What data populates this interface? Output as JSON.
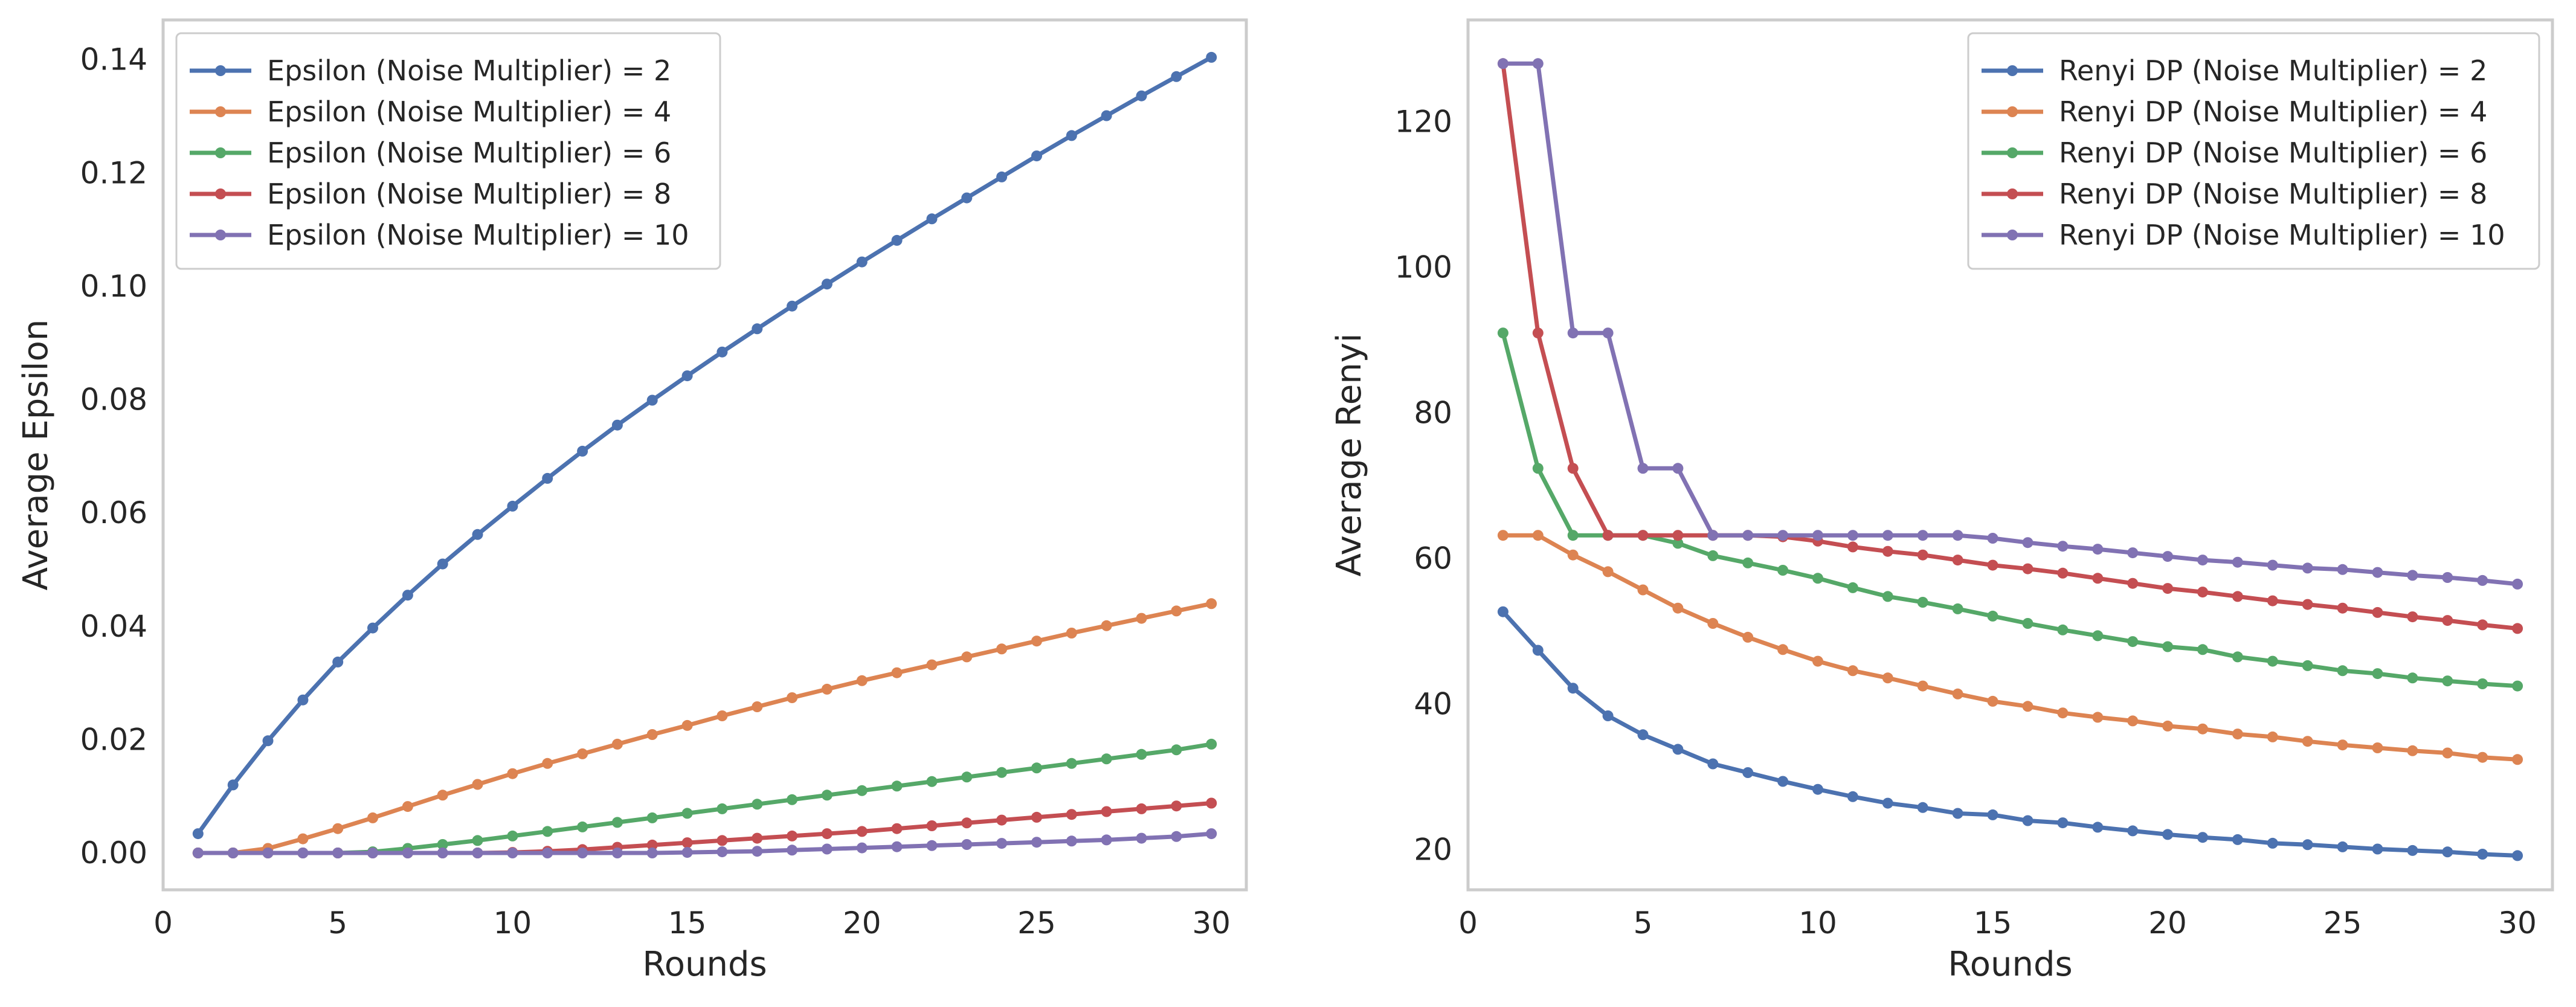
{
  "chart_data": [
    {
      "type": "line",
      "title": "",
      "xlabel": "Rounds",
      "ylabel": "Average Epsilon",
      "xlim": [
        0,
        31
      ],
      "ylim": [
        -0.0065,
        0.147
      ],
      "xticks": [
        0,
        5,
        10,
        15,
        20,
        25,
        30
      ],
      "xtick_labels": [
        "0",
        "5",
        "10",
        "15",
        "20",
        "25",
        "30"
      ],
      "yticks": [
        0.0,
        0.02,
        0.04,
        0.06,
        0.08,
        0.1,
        0.12,
        0.14
      ],
      "ytick_labels": [
        "0.00",
        "0.02",
        "0.04",
        "0.06",
        "0.08",
        "0.10",
        "0.12",
        "0.14"
      ],
      "grid": false,
      "legend_position": "top-left",
      "x": [
        1,
        2,
        3,
        4,
        5,
        6,
        7,
        8,
        9,
        10,
        11,
        12,
        13,
        14,
        15,
        16,
        17,
        18,
        19,
        20,
        21,
        22,
        23,
        24,
        25,
        26,
        27,
        28,
        29,
        30
      ],
      "series": [
        {
          "name": "Epsilon (Noise Multiplier) = 2",
          "color": "#4C72B0",
          "values": [
            0.0034,
            0.012,
            0.0198,
            0.027,
            0.0337,
            0.0397,
            0.0455,
            0.051,
            0.0562,
            0.0612,
            0.0661,
            0.0709,
            0.0755,
            0.0799,
            0.0842,
            0.0884,
            0.0925,
            0.0965,
            0.1004,
            0.1043,
            0.1081,
            0.1119,
            0.1156,
            0.1193,
            0.123,
            0.1266,
            0.1301,
            0.1336,
            0.137,
            0.1404
          ]
        },
        {
          "name": "Epsilon (Noise Multiplier) = 4",
          "color": "#DD8452",
          "values": [
            0.0,
            0.0,
            0.0008,
            0.0025,
            0.0043,
            0.0062,
            0.0082,
            0.0102,
            0.0121,
            0.014,
            0.0158,
            0.0175,
            0.0192,
            0.0209,
            0.0225,
            0.0242,
            0.0258,
            0.0274,
            0.0289,
            0.0304,
            0.0318,
            0.0332,
            0.0346,
            0.036,
            0.0374,
            0.0388,
            0.0401,
            0.0414,
            0.0427,
            0.044
          ]
        },
        {
          "name": "Epsilon (Noise Multiplier) = 6",
          "color": "#55A868",
          "values": [
            0.0,
            0.0,
            0.0,
            0.0,
            0.0,
            0.0002,
            0.0008,
            0.0015,
            0.0022,
            0.003,
            0.0038,
            0.0046,
            0.0054,
            0.0062,
            0.007,
            0.0078,
            0.0086,
            0.0094,
            0.0102,
            0.011,
            0.0118,
            0.0126,
            0.0134,
            0.0142,
            0.015,
            0.0158,
            0.0166,
            0.0174,
            0.0182,
            0.0192
          ]
        },
        {
          "name": "Epsilon (Noise Multiplier) = 8",
          "color": "#C44E52",
          "values": [
            0.0,
            0.0,
            0.0,
            0.0,
            0.0,
            0.0,
            0.0,
            0.0,
            0.0,
            0.0001,
            0.0003,
            0.0006,
            0.001,
            0.0014,
            0.0018,
            0.0022,
            0.0026,
            0.003,
            0.0034,
            0.0038,
            0.0043,
            0.0048,
            0.0053,
            0.0058,
            0.0063,
            0.0068,
            0.0073,
            0.0078,
            0.0083,
            0.0088
          ]
        },
        {
          "name": "Epsilon (Noise Multiplier) = 10",
          "color": "#8172B3",
          "values": [
            0.0,
            0.0,
            0.0,
            0.0,
            0.0,
            0.0,
            0.0,
            0.0,
            0.0,
            0.0,
            0.0,
            0.0,
            0.0,
            0.0,
            0.0001,
            0.0002,
            0.0003,
            0.0005,
            0.0007,
            0.0009,
            0.0011,
            0.0013,
            0.0015,
            0.0017,
            0.0019,
            0.0021,
            0.0023,
            0.0026,
            0.0029,
            0.0034
          ]
        }
      ]
    },
    {
      "type": "line",
      "title": "",
      "xlabel": "Rounds",
      "ylabel": "Average Renyi",
      "xlim": [
        0,
        31
      ],
      "ylim": [
        14.5,
        134
      ],
      "xticks": [
        0,
        5,
        10,
        15,
        20,
        25,
        30
      ],
      "xtick_labels": [
        "0",
        "5",
        "10",
        "15",
        "20",
        "25",
        "30"
      ],
      "yticks": [
        20,
        40,
        60,
        80,
        100,
        120
      ],
      "ytick_labels": [
        "20",
        "40",
        "60",
        "80",
        "100",
        "120"
      ],
      "grid": false,
      "legend_position": "top-right",
      "x": [
        1,
        2,
        3,
        4,
        5,
        6,
        7,
        8,
        9,
        10,
        11,
        12,
        13,
        14,
        15,
        16,
        17,
        18,
        19,
        20,
        21,
        22,
        23,
        24,
        25,
        26,
        27,
        28,
        29,
        30
      ],
      "series": [
        {
          "name": "Renyi DP (Noise Multiplier) = 2",
          "color": "#4C72B0",
          "values": [
            52.7,
            47.4,
            42.2,
            38.4,
            35.8,
            33.8,
            31.8,
            30.6,
            29.4,
            28.3,
            27.3,
            26.4,
            25.8,
            25.0,
            24.8,
            24.0,
            23.7,
            23.1,
            22.6,
            22.1,
            21.7,
            21.4,
            20.9,
            20.7,
            20.4,
            20.1,
            19.9,
            19.7,
            19.4,
            19.2
          ]
        },
        {
          "name": "Renyi DP (Noise Multiplier) = 4",
          "color": "#DD8452",
          "values": [
            63.2,
            63.2,
            60.5,
            58.2,
            55.7,
            53.2,
            51.1,
            49.2,
            47.5,
            45.9,
            44.6,
            43.6,
            42.5,
            41.4,
            40.4,
            39.7,
            38.8,
            38.2,
            37.7,
            37.0,
            36.6,
            35.9,
            35.5,
            34.9,
            34.4,
            34.0,
            33.6,
            33.3,
            32.7,
            32.4
          ]
        },
        {
          "name": "Renyi DP (Noise Multiplier) = 6",
          "color": "#55A868",
          "values": [
            91.0,
            72.4,
            63.2,
            63.2,
            63.2,
            62.1,
            60.4,
            59.4,
            58.4,
            57.3,
            56.0,
            54.8,
            54.0,
            53.1,
            52.1,
            51.1,
            50.2,
            49.4,
            48.6,
            47.9,
            47.5,
            46.5,
            45.9,
            45.3,
            44.6,
            44.2,
            43.6,
            43.2,
            42.8,
            42.5
          ]
        },
        {
          "name": "Renyi DP (Noise Multiplier) = 8",
          "color": "#C44E52",
          "values": [
            128.0,
            91.0,
            72.4,
            63.2,
            63.2,
            63.2,
            63.2,
            63.2,
            63.0,
            62.4,
            61.6,
            61.0,
            60.5,
            59.8,
            59.1,
            58.6,
            58.0,
            57.3,
            56.6,
            55.9,
            55.4,
            54.8,
            54.2,
            53.7,
            53.2,
            52.6,
            52.0,
            51.5,
            50.9,
            50.4
          ]
        },
        {
          "name": "Renyi DP (Noise Multiplier) = 10",
          "color": "#8172B3",
          "values": [
            128.0,
            128.0,
            91.0,
            91.0,
            72.4,
            72.4,
            63.2,
            63.2,
            63.2,
            63.2,
            63.2,
            63.2,
            63.2,
            63.2,
            62.8,
            62.2,
            61.7,
            61.3,
            60.8,
            60.3,
            59.8,
            59.5,
            59.1,
            58.7,
            58.5,
            58.1,
            57.7,
            57.4,
            57.0,
            56.5
          ]
        }
      ]
    }
  ]
}
